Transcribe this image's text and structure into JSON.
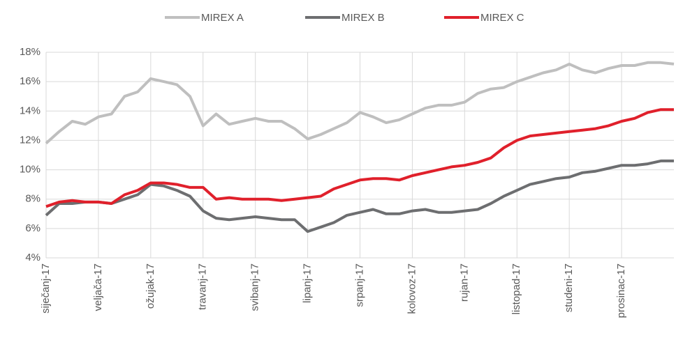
{
  "chart_data": {
    "type": "line",
    "categories": [
      "siječanj-17",
      null,
      null,
      null,
      "veljača-17",
      null,
      null,
      null,
      "ožujak-17",
      null,
      null,
      null,
      "travanj-17",
      null,
      null,
      null,
      "svibanj-17",
      null,
      null,
      null,
      "lipanj-17",
      null,
      null,
      null,
      "srpanj-17",
      null,
      null,
      null,
      "kolovoz-17",
      null,
      null,
      null,
      "rujan-17",
      null,
      null,
      null,
      "listopad-17",
      null,
      null,
      null,
      "studeni-17",
      null,
      null,
      null,
      "prosinac-17",
      null,
      null,
      null,
      null
    ],
    "series": [
      {
        "name": "MIREX A",
        "color": "#bfbfbf",
        "values": [
          11.8,
          12.6,
          13.3,
          13.1,
          13.6,
          13.8,
          15.0,
          15.3,
          16.2,
          16.0,
          15.8,
          15.0,
          13.0,
          13.8,
          13.1,
          13.3,
          13.5,
          13.3,
          13.3,
          12.8,
          12.1,
          12.4,
          12.8,
          13.2,
          13.9,
          13.6,
          13.2,
          13.4,
          13.8,
          14.2,
          14.4,
          14.4,
          14.6,
          15.2,
          15.5,
          15.6,
          16.0,
          16.3,
          16.6,
          16.8,
          17.2,
          16.8,
          16.6,
          16.9,
          17.1,
          17.1,
          17.3,
          17.3,
          17.2
        ]
      },
      {
        "name": "MIREX B",
        "color": "#6d6e70",
        "values": [
          6.9,
          7.7,
          7.7,
          7.8,
          7.8,
          7.7,
          8.0,
          8.3,
          9.0,
          8.9,
          8.6,
          8.2,
          7.2,
          6.7,
          6.6,
          6.7,
          6.8,
          6.7,
          6.6,
          6.6,
          5.8,
          6.1,
          6.4,
          6.9,
          7.1,
          7.3,
          7.0,
          7.0,
          7.2,
          7.3,
          7.1,
          7.1,
          7.2,
          7.3,
          7.7,
          8.2,
          8.6,
          9.0,
          9.2,
          9.4,
          9.5,
          9.8,
          9.9,
          10.1,
          10.3,
          10.3,
          10.4,
          10.6,
          10.6
        ]
      },
      {
        "name": "MIREX C",
        "color": "#e0202b",
        "values": [
          7.5,
          7.8,
          7.9,
          7.8,
          7.8,
          7.7,
          8.3,
          8.6,
          9.1,
          9.1,
          9.0,
          8.8,
          8.8,
          8.0,
          8.1,
          8.0,
          8.0,
          8.0,
          7.9,
          8.0,
          8.1,
          8.2,
          8.7,
          9.0,
          9.3,
          9.4,
          9.4,
          9.3,
          9.6,
          9.8,
          10.0,
          10.2,
          10.3,
          10.5,
          10.8,
          11.5,
          12.0,
          12.3,
          12.4,
          12.5,
          12.6,
          12.7,
          12.8,
          13.0,
          13.3,
          13.5,
          13.9,
          14.1,
          14.1
        ]
      }
    ],
    "ylim": [
      4,
      18
    ],
    "yticks": [
      {
        "value": 4,
        "label": "4%"
      },
      {
        "value": 6,
        "label": "6%"
      },
      {
        "value": 8,
        "label": "8%"
      },
      {
        "value": 10,
        "label": "10%"
      },
      {
        "value": 12,
        "label": "12%"
      },
      {
        "value": 14,
        "label": "14%"
      },
      {
        "value": 16,
        "label": "16%"
      },
      {
        "value": 18,
        "label": "18%"
      }
    ],
    "grid": true,
    "legend": "top"
  }
}
